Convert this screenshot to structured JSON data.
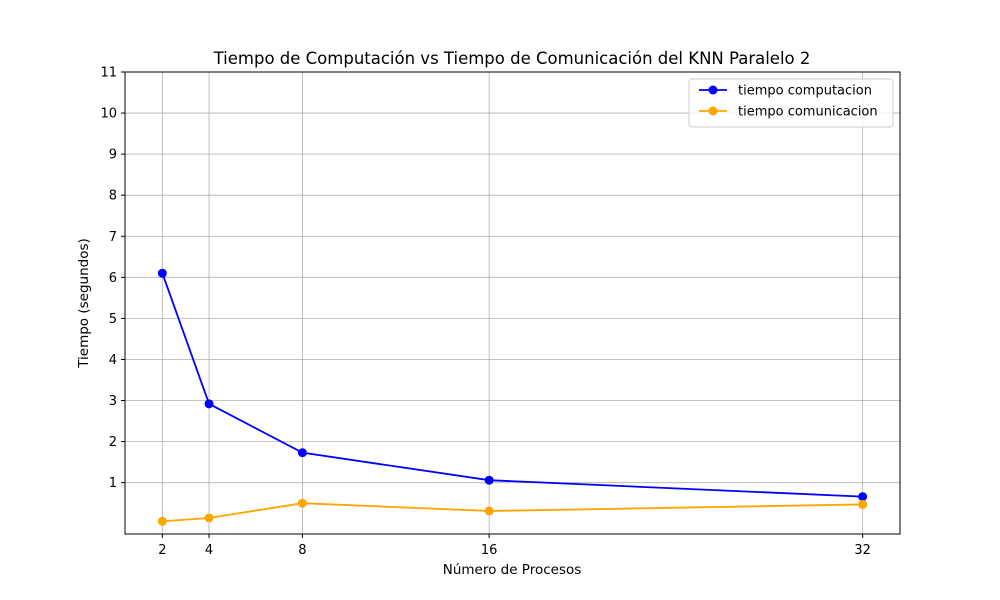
{
  "chart_data": {
    "type": "line",
    "title": "Tiempo de Computación vs Tiempo de Comunicación del KNN Paralelo 2",
    "xlabel": "Número de Procesos",
    "ylabel": "Tiempo (segundos)",
    "x": [
      2,
      4,
      8,
      16,
      32
    ],
    "xticks": [
      2,
      4,
      8,
      16,
      32
    ],
    "yticks": [
      1,
      2,
      3,
      4,
      5,
      6,
      7,
      8,
      9,
      10,
      11
    ],
    "xlim": [
      0.4,
      33.6
    ],
    "ylim": [
      -0.25,
      11
    ],
    "grid": true,
    "legend_position": "top-right",
    "series": [
      {
        "name": "tiempo computacion",
        "color": "#0000ff",
        "values": [
          6.1,
          2.92,
          1.73,
          1.06,
          0.66
        ]
      },
      {
        "name": "tiempo comunicacion",
        "color": "#ffa500",
        "values": [
          0.06,
          0.14,
          0.5,
          0.31,
          0.47
        ]
      }
    ]
  }
}
